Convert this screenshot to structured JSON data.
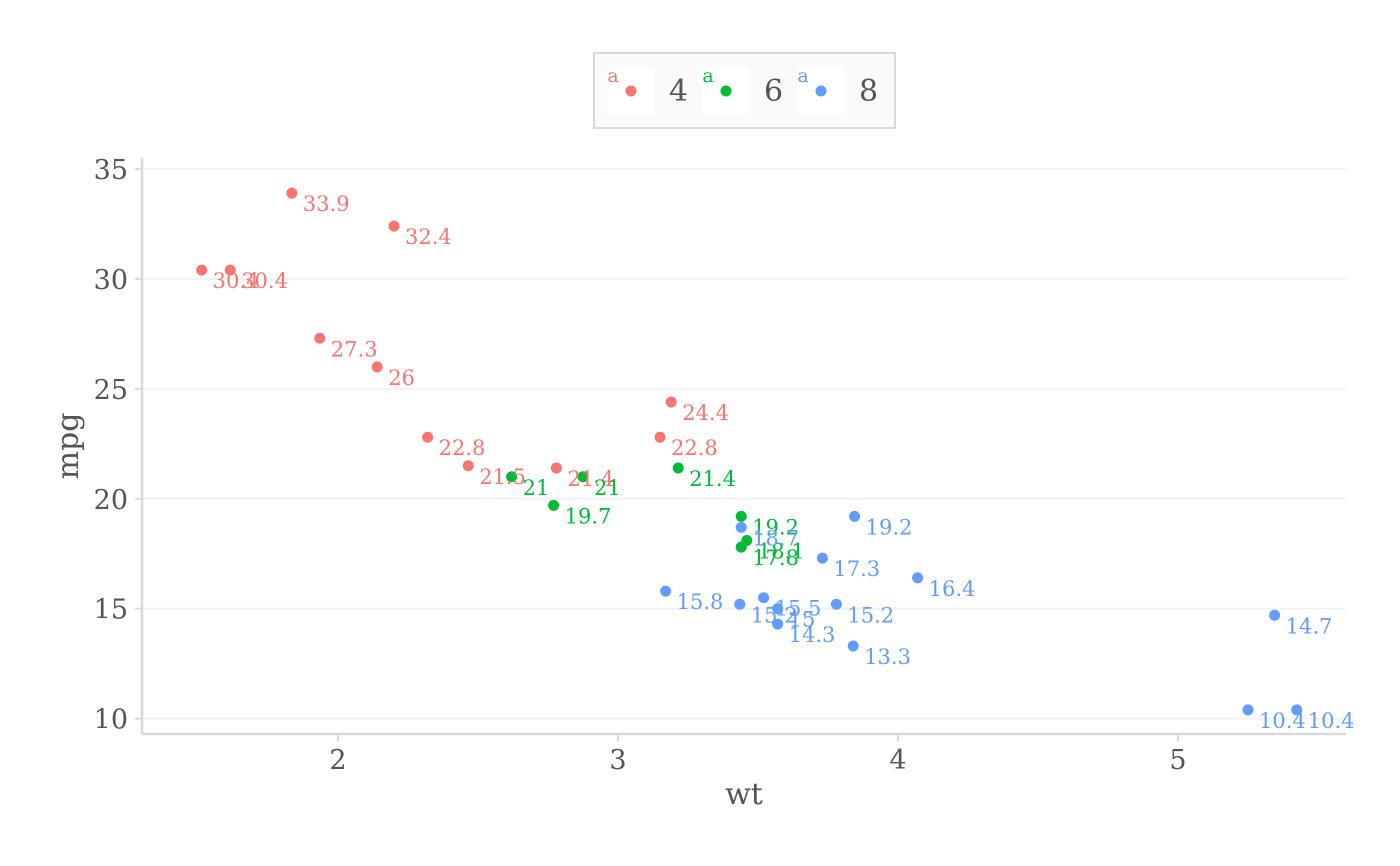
{
  "chart_data": {
    "type": "scatter",
    "title": "",
    "xlabel": "wt",
    "ylabel": "mpg",
    "xlim": [
      1.3,
      5.6
    ],
    "ylim": [
      9.3,
      35.5
    ],
    "xticks": [
      2,
      3,
      4,
      5
    ],
    "xtick_labels": [
      "2",
      "3",
      "4",
      "5"
    ],
    "yticks": [
      10,
      15,
      20,
      25,
      30,
      35
    ],
    "ytick_labels": [
      "10",
      "15",
      "20",
      "25",
      "30",
      "35"
    ],
    "grid": true,
    "legend": {
      "position": "top",
      "key_letter": "a",
      "entries": [
        {
          "label": "4",
          "color": "#F8766D"
        },
        {
          "label": "6",
          "color": "#00BA38"
        },
        {
          "label": "8",
          "color": "#619CFF"
        }
      ]
    },
    "series": [
      {
        "name": "4",
        "color": "#F8766D",
        "x": [
          2.32,
          3.19,
          3.15,
          2.2,
          1.615,
          1.835,
          2.465,
          1.935,
          2.14,
          1.513,
          2.78
        ],
        "y": [
          22.8,
          24.4,
          22.8,
          32.4,
          30.4,
          33.9,
          21.5,
          27.3,
          26,
          30.4,
          21.4
        ],
        "labels": [
          "22.8",
          "24.4",
          "22.8",
          "32.4",
          "30.4",
          "33.9",
          "21.5",
          "27.3",
          "26",
          "30.4",
          "21.4"
        ]
      },
      {
        "name": "6",
        "color": "#00BA38",
        "x": [
          2.62,
          2.875,
          3.215,
          3.46,
          3.44,
          3.44,
          2.77
        ],
        "y": [
          21,
          21,
          21.4,
          18.1,
          19.2,
          17.8,
          19.7
        ],
        "labels": [
          "21",
          "21",
          "21.4",
          "18.1",
          "19.2",
          "17.8",
          "19.7"
        ]
      },
      {
        "name": "8",
        "color": "#619CFF",
        "x": [
          3.44,
          3.57,
          4.07,
          3.73,
          3.78,
          5.25,
          5.424,
          5.345,
          3.52,
          3.435,
          3.84,
          3.845,
          3.17,
          3.57
        ],
        "y": [
          18.7,
          14.3,
          16.4,
          17.3,
          15.2,
          10.4,
          10.4,
          14.7,
          15.5,
          15.2,
          13.3,
          19.2,
          15.8,
          15
        ],
        "labels": [
          "18.7",
          "14.3",
          "16.4",
          "17.3",
          "15.2",
          "10.4",
          "10.4",
          "14.7",
          "15.5",
          "15.2",
          "13.3",
          "19.2",
          "15.8",
          "15"
        ]
      }
    ]
  }
}
